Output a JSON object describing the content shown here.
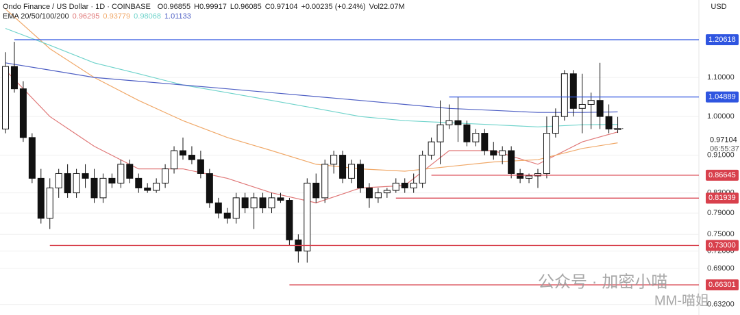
{
  "chart_data": {
    "type": "candlestick",
    "header": {
      "symbol": "Ondo Finance / US Dollar · 1D · COINBASE",
      "items": [
        "O0.96855",
        "H0.99917",
        "L0.96085",
        "C0.97104",
        "+0.00235 (+0.24%)",
        "Vol22.07M"
      ]
    },
    "indicator": "EMA 20/50/100/200",
    "currency": "USD",
    "ylim": [
      0.616,
      1.329
    ],
    "log_scale": true,
    "grid": true,
    "yticks": [
      {
        "value": 1.1,
        "label": "1.10000"
      },
      {
        "value": 1.0,
        "label": "1.00000"
      },
      {
        "value": 0.91,
        "label": "0.91000"
      },
      {
        "value": 0.83,
        "label": "0.83000"
      },
      {
        "value": 0.79,
        "label": "0.79000"
      },
      {
        "value": 0.75,
        "label": "0.75000"
      },
      {
        "value": 0.72,
        "label": "0.72000"
      },
      {
        "value": 0.69,
        "label": "0.69000"
      },
      {
        "value": 0.632,
        "label": "0.63200"
      }
    ],
    "up_color": "#ffffff",
    "down_color": "#111111",
    "ohlc": [
      [
        0.97,
        1.17,
        0.96,
        1.13
      ],
      [
        1.13,
        1.2,
        1.06,
        1.07
      ],
      [
        1.07,
        1.09,
        0.94,
        0.95
      ],
      [
        0.95,
        0.96,
        0.85,
        0.86
      ],
      [
        0.86,
        0.88,
        0.77,
        0.78
      ],
      [
        0.78,
        0.86,
        0.76,
        0.84
      ],
      [
        0.84,
        0.88,
        0.82,
        0.87
      ],
      [
        0.87,
        0.89,
        0.82,
        0.83
      ],
      [
        0.83,
        0.88,
        0.82,
        0.87
      ],
      [
        0.87,
        0.89,
        0.84,
        0.86
      ],
      [
        0.86,
        0.88,
        0.81,
        0.82
      ],
      [
        0.82,
        0.87,
        0.81,
        0.86
      ],
      [
        0.86,
        0.87,
        0.84,
        0.85
      ],
      [
        0.85,
        0.9,
        0.84,
        0.89
      ],
      [
        0.89,
        0.9,
        0.85,
        0.86
      ],
      [
        0.86,
        0.87,
        0.83,
        0.84
      ],
      [
        0.84,
        0.85,
        0.83,
        0.835
      ],
      [
        0.835,
        0.86,
        0.83,
        0.85
      ],
      [
        0.85,
        0.89,
        0.84,
        0.88
      ],
      [
        0.88,
        0.93,
        0.87,
        0.92
      ],
      [
        0.92,
        0.95,
        0.9,
        0.91
      ],
      [
        0.91,
        0.93,
        0.89,
        0.9
      ],
      [
        0.9,
        0.92,
        0.86,
        0.87
      ],
      [
        0.87,
        0.88,
        0.8,
        0.81
      ],
      [
        0.81,
        0.82,
        0.78,
        0.79
      ],
      [
        0.79,
        0.8,
        0.77,
        0.78
      ],
      [
        0.78,
        0.83,
        0.77,
        0.82
      ],
      [
        0.82,
        0.83,
        0.79,
        0.8
      ],
      [
        0.8,
        0.83,
        0.76,
        0.82
      ],
      [
        0.82,
        0.83,
        0.79,
        0.8
      ],
      [
        0.8,
        0.83,
        0.79,
        0.82
      ],
      [
        0.82,
        0.83,
        0.81,
        0.815
      ],
      [
        0.815,
        0.82,
        0.73,
        0.74
      ],
      [
        0.74,
        0.75,
        0.7,
        0.72
      ],
      [
        0.72,
        0.86,
        0.7,
        0.85
      ],
      [
        0.85,
        0.87,
        0.81,
        0.82
      ],
      [
        0.82,
        0.9,
        0.81,
        0.89
      ],
      [
        0.89,
        0.92,
        0.87,
        0.91
      ],
      [
        0.91,
        0.92,
        0.85,
        0.86
      ],
      [
        0.86,
        0.9,
        0.85,
        0.89
      ],
      [
        0.89,
        0.9,
        0.83,
        0.84
      ],
      [
        0.84,
        0.85,
        0.8,
        0.82
      ],
      [
        0.82,
        0.84,
        0.81,
        0.83
      ],
      [
        0.83,
        0.84,
        0.82,
        0.835
      ],
      [
        0.835,
        0.86,
        0.83,
        0.85
      ],
      [
        0.85,
        0.86,
        0.83,
        0.84
      ],
      [
        0.84,
        0.87,
        0.83,
        0.85
      ],
      [
        0.85,
        0.92,
        0.84,
        0.91
      ],
      [
        0.91,
        0.95,
        0.9,
        0.94
      ],
      [
        0.94,
        1.04,
        0.89,
        0.98
      ],
      [
        0.98,
        1.03,
        0.97,
        0.99
      ],
      [
        0.99,
        1.05,
        0.94,
        0.98
      ],
      [
        0.98,
        0.99,
        0.93,
        0.94
      ],
      [
        0.94,
        0.97,
        0.93,
        0.96
      ],
      [
        0.96,
        0.97,
        0.91,
        0.92
      ],
      [
        0.92,
        0.94,
        0.9,
        0.91
      ],
      [
        0.91,
        0.93,
        0.89,
        0.92
      ],
      [
        0.92,
        0.93,
        0.86,
        0.87
      ],
      [
        0.87,
        0.88,
        0.85,
        0.86
      ],
      [
        0.86,
        0.87,
        0.85,
        0.865
      ],
      [
        0.865,
        0.88,
        0.84,
        0.87
      ],
      [
        0.87,
        1.0,
        0.86,
        0.96
      ],
      [
        0.96,
        1.02,
        0.95,
        1.0
      ],
      [
        1.0,
        1.12,
        0.99,
        1.11
      ],
      [
        1.11,
        1.12,
        1.0,
        1.02
      ],
      [
        1.02,
        1.11,
        0.96,
        1.03
      ],
      [
        1.03,
        1.06,
        0.97,
        1.04
      ],
      [
        1.04,
        1.14,
        0.97,
        1.0
      ],
      [
        1.0,
        1.03,
        0.96,
        0.97
      ],
      [
        0.96855,
        0.99917,
        0.96085,
        0.97104
      ]
    ],
    "series": [
      {
        "name": "EMA 20",
        "color": "#e07878",
        "last_label": "0.96295",
        "x": [
          0,
          5,
          10,
          15,
          20,
          25,
          30,
          35,
          40,
          45,
          50,
          55,
          60,
          65,
          69
        ],
        "values": [
          1.12,
          1.0,
          0.93,
          0.88,
          0.88,
          0.86,
          0.83,
          0.81,
          0.84,
          0.845,
          0.92,
          0.92,
          0.89,
          0.94,
          0.96295
        ]
      },
      {
        "name": "EMA 50",
        "color": "#f0a868",
        "last_label": "0.93779",
        "x": [
          0,
          5,
          10,
          15,
          20,
          25,
          30,
          35,
          40,
          45,
          50,
          55,
          60,
          65,
          69
        ],
        "values": [
          1.3,
          1.18,
          1.1,
          1.04,
          0.99,
          0.95,
          0.92,
          0.89,
          0.88,
          0.875,
          0.885,
          0.895,
          0.9,
          0.925,
          0.93779
        ]
      },
      {
        "name": "EMA 100",
        "color": "#6fd3cb",
        "last_label": "0.98068",
        "x": [
          0,
          5,
          10,
          15,
          20,
          25,
          30,
          35,
          40,
          45,
          50,
          55,
          60,
          65,
          69
        ],
        "values": [
          1.24,
          1.19,
          1.14,
          1.11,
          1.08,
          1.06,
          1.04,
          1.02,
          1.0,
          0.99,
          0.985,
          0.98,
          0.975,
          0.98,
          0.98068
        ]
      },
      {
        "name": "EMA 200",
        "color": "#4e5fc4",
        "last_label": "1.01133",
        "x": [
          0,
          5,
          10,
          15,
          20,
          25,
          30,
          35,
          40,
          45,
          50,
          55,
          60,
          65,
          69
        ],
        "values": [
          1.14,
          1.12,
          1.1,
          1.09,
          1.08,
          1.07,
          1.06,
          1.05,
          1.04,
          1.03,
          1.02,
          1.015,
          1.01,
          1.01,
          1.01133
        ]
      }
    ],
    "levels": [
      {
        "value": 1.20618,
        "label": "1.20618",
        "color": "#2f55e0",
        "from": 1
      },
      {
        "value": 1.04889,
        "label": "1.04889",
        "color": "#2f55e0",
        "from": 50
      },
      {
        "value": 0.86645,
        "label": "0.86645",
        "color": "#d8404c",
        "from": 48
      },
      {
        "value": 0.81939,
        "label": "0.81939",
        "color": "#d8404c",
        "from": 44
      },
      {
        "value": 0.73,
        "label": "0.73000",
        "color": "#d8404c",
        "from": 5
      },
      {
        "value": 0.66301,
        "label": "0.66301",
        "color": "#d8404c",
        "from": 32
      }
    ],
    "last_price": {
      "value": 0.97104,
      "label": "0.97104"
    },
    "countdown": "06:55:37",
    "watermark": [
      "公众号 · 加密小喵",
      "MM-喵姐"
    ]
  }
}
